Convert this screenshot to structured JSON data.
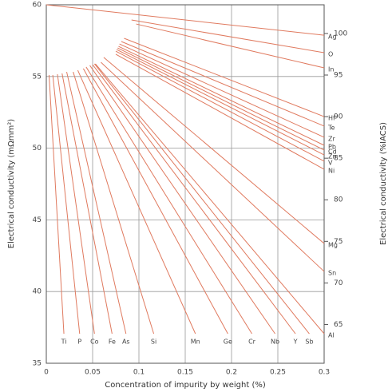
{
  "chart_data": {
    "type": "line",
    "xlabel": "Concentration of impurity by weight (%)",
    "ylabel": "Electrical conductivity (mΩmm²)",
    "y2label": "Electrical conductivity (%IACS)",
    "xlim": [
      0,
      0.3
    ],
    "xticks": [
      0,
      0.05,
      0.1,
      0.15,
      0.2,
      0.25,
      0.3
    ],
    "ylim": [
      35,
      60
    ],
    "yticks": [
      35,
      40,
      45,
      50,
      55,
      60
    ],
    "y2lim": [
      60.34,
      103.45
    ],
    "y2ticks": [
      65,
      70,
      75,
      80,
      85,
      90,
      95,
      100
    ],
    "grid": true,
    "color": "#e07a5f",
    "series": [
      {
        "name": "Ag",
        "x": [
          0,
          0.3
        ],
        "values": [
          60,
          57.88
        ]
      },
      {
        "name": "O",
        "x": [
          0.092,
          0.3
        ],
        "values": [
          58.94,
          56.66
        ]
      },
      {
        "name": "In",
        "x": [
          0.097,
          0.3
        ],
        "values": [
          58.66,
          55.6
        ]
      },
      {
        "name": "Hf",
        "x": [
          0.084,
          0.3
        ],
        "values": [
          57.66,
          52.2
        ]
      },
      {
        "name": "Te",
        "x": [
          0.081,
          0.3
        ],
        "values": [
          57.44,
          51.54
        ]
      },
      {
        "name": "Zr",
        "x": [
          0.079,
          0.3
        ],
        "values": [
          57.27,
          50.76
        ]
      },
      {
        "name": "Pb",
        "x": [
          0.078,
          0.3
        ],
        "values": [
          57.1,
          50.2
        ]
      },
      {
        "name": "Cd",
        "x": [
          0.077,
          0.3
        ],
        "values": [
          56.99,
          49.87
        ]
      },
      {
        "name": "Zn",
        "x": [
          0.076,
          0.3
        ],
        "values": [
          56.88,
          49.53
        ]
      },
      {
        "name": "V",
        "x": [
          0.075,
          0.3
        ],
        "values": [
          56.77,
          49.09
        ]
      },
      {
        "name": "Ni",
        "x": [
          0.075,
          0.3
        ],
        "values": [
          56.55,
          48.53
        ]
      },
      {
        "name": "Mg",
        "x": [
          0.062,
          0.3
        ],
        "values": [
          56.33,
          43.35
        ]
      },
      {
        "name": "Sn",
        "x": [
          0.059,
          0.3
        ],
        "values": [
          55.99,
          41.4
        ]
      },
      {
        "name": "Al",
        "x": [
          0.053,
          0.3
        ],
        "values": [
          55.88,
          37.06
        ]
      },
      {
        "name": "Sb",
        "x": [
          0.052,
          0.284
        ],
        "values": [
          55.88,
          37.06
        ]
      },
      {
        "name": "Y",
        "x": [
          0.05,
          0.269
        ],
        "values": [
          55.83,
          37.06
        ]
      },
      {
        "name": "Nb",
        "x": [
          0.047,
          0.247
        ],
        "values": [
          55.77,
          37.06
        ]
      },
      {
        "name": "Cr",
        "x": [
          0.043,
          0.222
        ],
        "values": [
          55.66,
          37.06
        ]
      },
      {
        "name": "Ge",
        "x": [
          0.04,
          0.196
        ],
        "values": [
          55.55,
          37.06
        ]
      },
      {
        "name": "Mn",
        "x": [
          0.034,
          0.161
        ],
        "values": [
          55.43,
          37.06
        ]
      },
      {
        "name": "Si",
        "x": [
          0.029,
          0.116
        ],
        "values": [
          55.32,
          37.06
        ]
      },
      {
        "name": "As",
        "x": [
          0.022,
          0.086
        ],
        "values": [
          55.32,
          37.06
        ]
      },
      {
        "name": "Fe",
        "x": [
          0.017,
          0.071
        ],
        "values": [
          55.21,
          37.06
        ]
      },
      {
        "name": "Co",
        "x": [
          0.012,
          0.052
        ],
        "values": [
          55.16,
          37.06
        ]
      },
      {
        "name": "P",
        "x": [
          0.007,
          0.036
        ],
        "values": [
          55.1,
          37.06
        ]
      },
      {
        "name": "Ti",
        "x": [
          0.003,
          0.019
        ],
        "values": [
          55.1,
          37.06
        ]
      }
    ]
  }
}
